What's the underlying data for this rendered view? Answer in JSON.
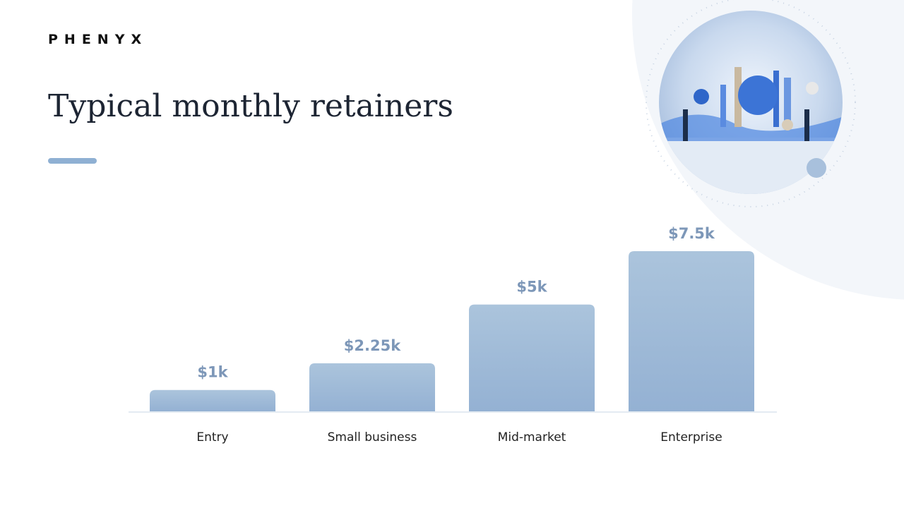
{
  "brand": "PHENYX",
  "chart_data": {
    "type": "bar",
    "title": "Typical monthly retainers",
    "categories": [
      "Entry",
      "Small business",
      "Mid-market",
      "Enterprise"
    ],
    "values": [
      1,
      2.25,
      5,
      7.5
    ],
    "value_labels": [
      "$1k",
      "$2.25k",
      "$5k",
      "$7.5k"
    ],
    "color": "#9fbad8"
  }
}
